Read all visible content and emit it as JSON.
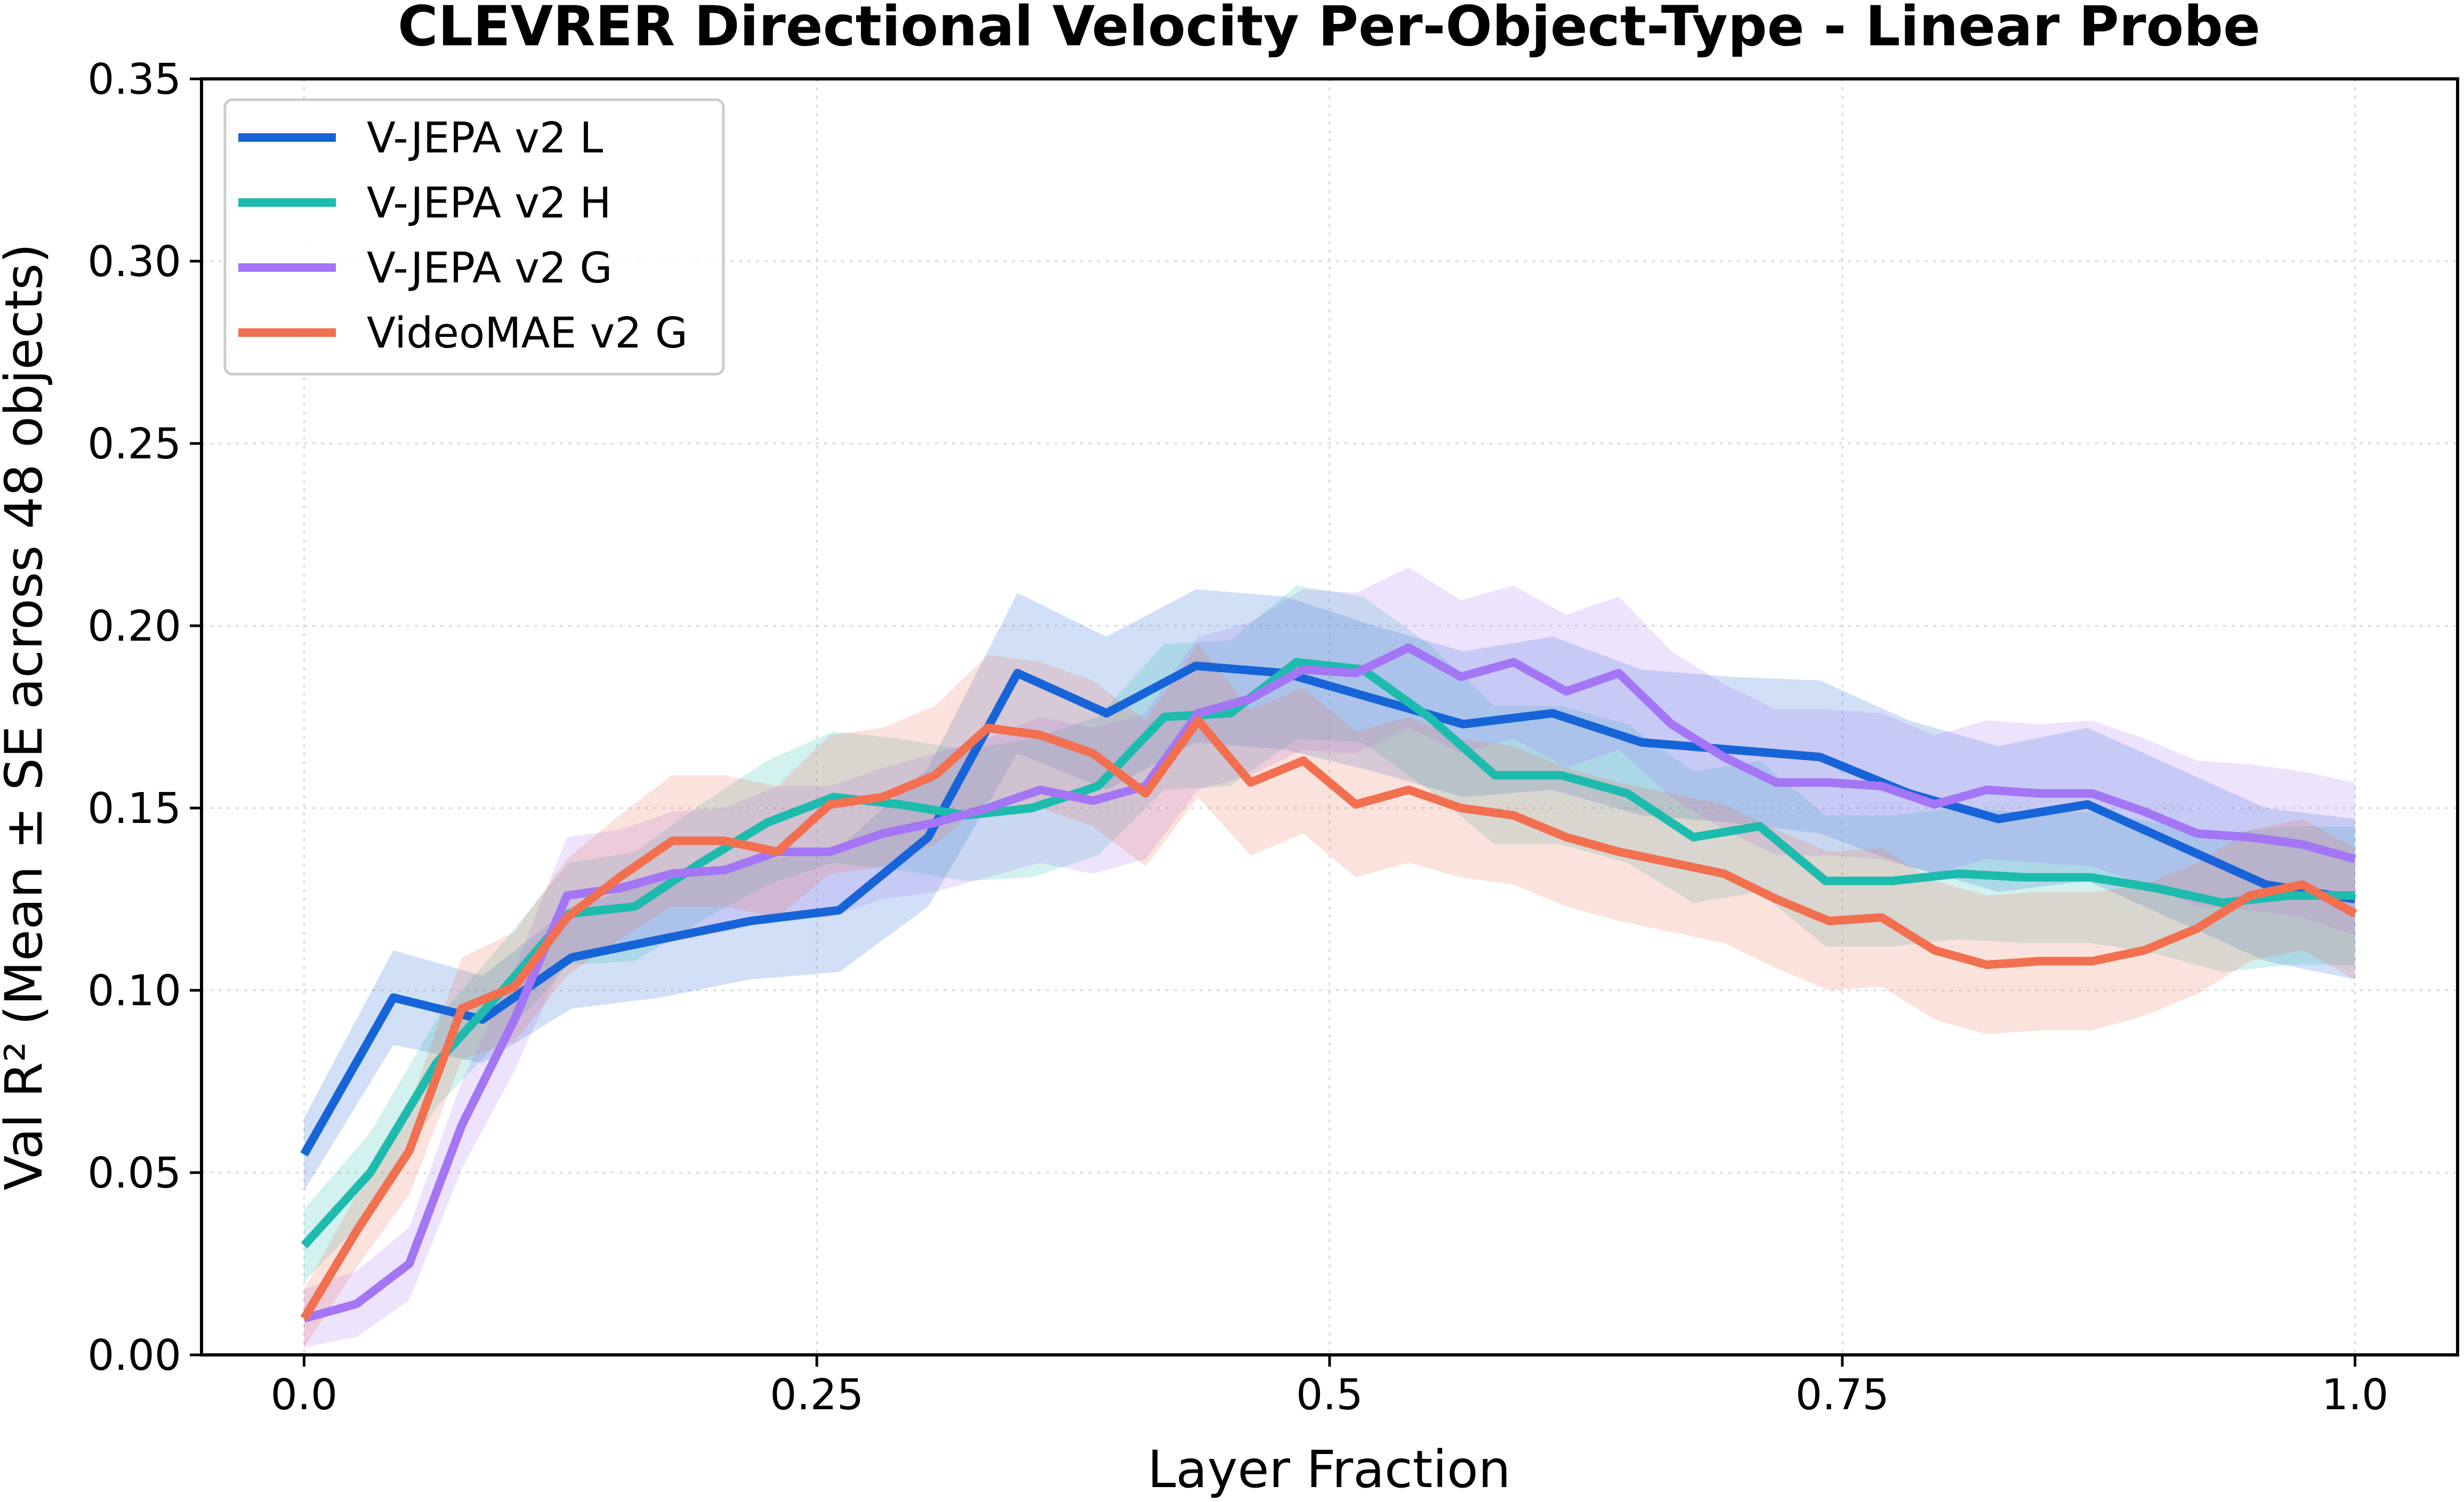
{
  "chart_data": {
    "type": "line",
    "title": "CLEVRER Directional Velocity Per-Object-Type - Linear Probe",
    "xlabel": "Layer Fraction",
    "ylabel": "Val R² (Mean ± SE across 48 objects)",
    "xlim": [
      -0.05,
      1.05
    ],
    "ylim": [
      0.0,
      0.35
    ],
    "xticks": [
      0.0,
      0.25,
      0.5,
      0.75,
      1.0
    ],
    "xtick_labels": [
      "0.0",
      "0.25",
      "0.5",
      "0.75",
      "1.0"
    ],
    "yticks": [
      0.0,
      0.05,
      0.1,
      0.15,
      0.2,
      0.25,
      0.3,
      0.35
    ],
    "ytick_labels": [
      "0.00",
      "0.05",
      "0.10",
      "0.15",
      "0.20",
      "0.25",
      "0.30",
      "0.35"
    ],
    "grid": true,
    "legend_position": "top-left",
    "series": [
      {
        "name": "V-JEPA v2 L",
        "color": "#1764d8",
        "x": [
          0.0,
          0.0435,
          0.087,
          0.1304,
          0.1739,
          0.2174,
          0.2609,
          0.3043,
          0.3478,
          0.3913,
          0.4348,
          0.4783,
          0.5217,
          0.5652,
          0.6087,
          0.6522,
          0.6957,
          0.7391,
          0.7826,
          0.8261,
          0.8696,
          0.913,
          0.9565,
          1.0
        ],
        "values": [
          0.055,
          0.098,
          0.092,
          0.109,
          0.114,
          0.119,
          0.122,
          0.142,
          0.187,
          0.176,
          0.189,
          0.187,
          0.18,
          0.173,
          0.176,
          0.168,
          0.166,
          0.164,
          0.154,
          0.147,
          0.151,
          0.14,
          0.129,
          0.125
        ],
        "se": [
          0.01,
          0.013,
          0.012,
          0.014,
          0.016,
          0.016,
          0.017,
          0.019,
          0.022,
          0.021,
          0.021,
          0.021,
          0.02,
          0.02,
          0.021,
          0.02,
          0.02,
          0.021,
          0.02,
          0.02,
          0.021,
          0.021,
          0.021,
          0.022
        ]
      },
      {
        "name": "V-JEPA v2 H",
        "color": "#1dbbad",
        "x": [
          0.0,
          0.0323,
          0.0645,
          0.0968,
          0.129,
          0.1613,
          0.1935,
          0.2258,
          0.2581,
          0.2903,
          0.3226,
          0.3548,
          0.3871,
          0.4194,
          0.4516,
          0.4839,
          0.5161,
          0.5484,
          0.5806,
          0.6129,
          0.6452,
          0.6774,
          0.7097,
          0.7419,
          0.7742,
          0.8065,
          0.8387,
          0.871,
          0.9032,
          0.9355,
          0.9677,
          1.0
        ],
        "values": [
          0.03,
          0.05,
          0.08,
          0.1,
          0.121,
          0.123,
          0.135,
          0.146,
          0.153,
          0.151,
          0.148,
          0.15,
          0.156,
          0.175,
          0.176,
          0.19,
          0.188,
          0.175,
          0.159,
          0.159,
          0.154,
          0.142,
          0.145,
          0.13,
          0.13,
          0.132,
          0.131,
          0.131,
          0.128,
          0.124,
          0.126,
          0.126
        ],
        "se": [
          0.01,
          0.011,
          0.012,
          0.013,
          0.014,
          0.015,
          0.016,
          0.017,
          0.018,
          0.018,
          0.018,
          0.019,
          0.019,
          0.02,
          0.02,
          0.021,
          0.02,
          0.02,
          0.019,
          0.019,
          0.019,
          0.018,
          0.018,
          0.018,
          0.018,
          0.018,
          0.018,
          0.018,
          0.018,
          0.019,
          0.019,
          0.019
        ]
      },
      {
        "name": "V-JEPA v2 G",
        "color": "#a475f5",
        "x": [
          0.0,
          0.0256,
          0.0513,
          0.0769,
          0.1026,
          0.1282,
          0.1538,
          0.1795,
          0.2051,
          0.2308,
          0.2564,
          0.2821,
          0.3077,
          0.3333,
          0.359,
          0.3846,
          0.4103,
          0.4359,
          0.4615,
          0.4872,
          0.5128,
          0.5385,
          0.5641,
          0.5897,
          0.6154,
          0.641,
          0.6667,
          0.6923,
          0.7179,
          0.7436,
          0.7692,
          0.7949,
          0.8205,
          0.8462,
          0.8718,
          0.8974,
          0.9231,
          0.9487,
          0.9744,
          1.0
        ],
        "values": [
          0.01,
          0.014,
          0.025,
          0.063,
          0.092,
          0.126,
          0.128,
          0.132,
          0.133,
          0.138,
          0.138,
          0.143,
          0.146,
          0.15,
          0.155,
          0.152,
          0.156,
          0.176,
          0.18,
          0.188,
          0.187,
          0.194,
          0.186,
          0.19,
          0.182,
          0.187,
          0.173,
          0.164,
          0.157,
          0.157,
          0.156,
          0.151,
          0.155,
          0.154,
          0.154,
          0.149,
          0.143,
          0.142,
          0.14,
          0.136
        ],
        "se": [
          0.008,
          0.009,
          0.01,
          0.012,
          0.014,
          0.016,
          0.016,
          0.017,
          0.017,
          0.018,
          0.018,
          0.018,
          0.019,
          0.019,
          0.02,
          0.02,
          0.02,
          0.021,
          0.021,
          0.022,
          0.022,
          0.022,
          0.021,
          0.021,
          0.021,
          0.021,
          0.02,
          0.02,
          0.02,
          0.02,
          0.02,
          0.019,
          0.019,
          0.019,
          0.02,
          0.02,
          0.02,
          0.02,
          0.02,
          0.021
        ]
      },
      {
        "name": "VideoMAE v2 G",
        "color": "#f26f4f",
        "x": [
          0.0,
          0.0256,
          0.0513,
          0.0769,
          0.1026,
          0.1282,
          0.1538,
          0.1795,
          0.2051,
          0.2308,
          0.2564,
          0.2821,
          0.3077,
          0.3333,
          0.359,
          0.3846,
          0.4103,
          0.4359,
          0.4615,
          0.4872,
          0.5128,
          0.5385,
          0.5641,
          0.5897,
          0.6154,
          0.641,
          0.6667,
          0.6923,
          0.7179,
          0.7436,
          0.7692,
          0.7949,
          0.8205,
          0.8462,
          0.8718,
          0.8974,
          0.9231,
          0.9487,
          0.9744,
          1.0
        ],
        "values": [
          0.01,
          0.034,
          0.056,
          0.095,
          0.101,
          0.12,
          0.131,
          0.141,
          0.141,
          0.138,
          0.151,
          0.153,
          0.159,
          0.172,
          0.17,
          0.165,
          0.154,
          0.174,
          0.157,
          0.163,
          0.151,
          0.155,
          0.15,
          0.148,
          0.142,
          0.138,
          0.135,
          0.132,
          0.125,
          0.119,
          0.12,
          0.111,
          0.107,
          0.108,
          0.108,
          0.111,
          0.117,
          0.126,
          0.129,
          0.121
        ],
        "se": [
          0.008,
          0.01,
          0.012,
          0.014,
          0.015,
          0.016,
          0.017,
          0.018,
          0.018,
          0.018,
          0.019,
          0.019,
          0.019,
          0.02,
          0.02,
          0.02,
          0.02,
          0.021,
          0.02,
          0.02,
          0.02,
          0.02,
          0.019,
          0.019,
          0.019,
          0.019,
          0.019,
          0.019,
          0.019,
          0.019,
          0.019,
          0.019,
          0.019,
          0.019,
          0.019,
          0.018,
          0.018,
          0.018,
          0.018,
          0.018
        ]
      }
    ]
  }
}
